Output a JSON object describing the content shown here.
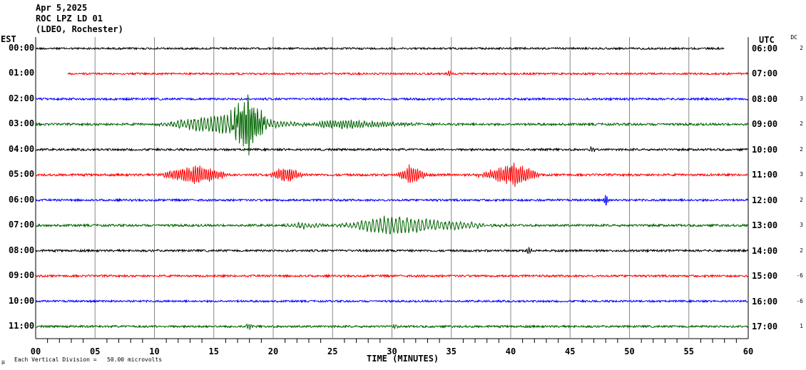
{
  "header": {
    "date": "Apr 5,2025",
    "station": "ROC LPZ LD 01",
    "network": "(LDEO, Rochester)"
  },
  "left_axis_title": "EST",
  "right_axis_title": "UTC",
  "dc_title": "DC",
  "footer": {
    "note_icon": "mu",
    "scale_note": "Each Vertical Division =   50.00 microvolts",
    "xlabel": "TIME (MINUTES)"
  },
  "chart_data": {
    "type": "line",
    "title": "ROC LPZ LD 01 helicorder Apr 5,2025",
    "xlabel": "TIME (MINUTES)",
    "xlim": [
      0,
      60
    ],
    "xticks": [
      "00",
      "05",
      "10",
      "15",
      "20",
      "25",
      "30",
      "35",
      "40",
      "45",
      "50",
      "55",
      "60"
    ],
    "minor_tick_step_minutes": 1,
    "grid": true,
    "vertical_division_microvolts": 50.0,
    "traces": [
      {
        "est": "00:00",
        "utc": "06:00",
        "dc": "2",
        "color": "#000000",
        "start": 0,
        "end": 58,
        "noise": 1.0,
        "events": []
      },
      {
        "est": "01:00",
        "utc": "07:00",
        "dc": "",
        "color": "#ff0000",
        "start": 2.7,
        "end": 60,
        "noise": 1.0,
        "events": [
          {
            "start": 34.5,
            "peak": 34.8,
            "end": 35.3,
            "amp": 2.5,
            "period": 0.2
          }
        ]
      },
      {
        "est": "02:00",
        "utc": "08:00",
        "dc": "3",
        "color": "#0000ff",
        "start": 0,
        "end": 60,
        "noise": 1.1,
        "events": []
      },
      {
        "est": "03:00",
        "utc": "09:00",
        "dc": "2",
        "color": "#006400",
        "start": 0,
        "end": 60,
        "noise": 1.2,
        "events": [
          {
            "start": 9.5,
            "peak": 15.5,
            "end": 24,
            "amp": 6,
            "period": 0.28
          },
          {
            "start": 15.8,
            "peak": 17.8,
            "end": 20,
            "amp": 18,
            "period": 0.16
          },
          {
            "start": 22,
            "peak": 25,
            "end": 36,
            "amp": 2.5,
            "period": 0.22
          }
        ]
      },
      {
        "est": "04:00",
        "utc": "10:00",
        "dc": "2",
        "color": "#000000",
        "start": 0,
        "end": 60,
        "noise": 1.1,
        "events": [
          {
            "start": 46.5,
            "peak": 46.8,
            "end": 47.3,
            "amp": 2.5,
            "period": 0.2
          }
        ]
      },
      {
        "est": "05:00",
        "utc": "11:00",
        "dc": "3",
        "color": "#ff0000",
        "start": 0,
        "end": 60,
        "noise": 1.2,
        "events": [
          {
            "start": 9.8,
            "peak": 13.5,
            "end": 17,
            "amp": 6,
            "period": 0.18
          },
          {
            "start": 19.3,
            "peak": 21,
            "end": 23.3,
            "amp": 5,
            "period": 0.18
          },
          {
            "start": 30.3,
            "peak": 31.5,
            "end": 33.5,
            "amp": 6.5,
            "period": 0.18
          },
          {
            "start": 36.5,
            "peak": 40.5,
            "end": 43,
            "amp": 7.5,
            "period": 0.18
          }
        ]
      },
      {
        "est": "06:00",
        "utc": "12:00",
        "dc": "2",
        "color": "#0000ff",
        "start": 0,
        "end": 60,
        "noise": 1.1,
        "events": [
          {
            "start": 47.7,
            "peak": 48,
            "end": 48.4,
            "amp": 4,
            "period": 0.15
          }
        ]
      },
      {
        "est": "07:00",
        "utc": "13:00",
        "dc": "3",
        "color": "#006400",
        "start": 0,
        "end": 60,
        "noise": 1.2,
        "events": [
          {
            "start": 20.5,
            "peak": 22.5,
            "end": 25,
            "amp": 2,
            "period": 0.3
          },
          {
            "start": 24.7,
            "peak": 29.5,
            "end": 41,
            "amp": 5.5,
            "period": 0.32
          }
        ]
      },
      {
        "est": "08:00",
        "utc": "14:00",
        "dc": "2",
        "color": "#000000",
        "start": 0,
        "end": 60,
        "noise": 1.1,
        "events": [
          {
            "start": 41.2,
            "peak": 41.5,
            "end": 42,
            "amp": 2.5,
            "period": 0.2
          }
        ]
      },
      {
        "est": "09:00",
        "utc": "15:00",
        "dc": "-6",
        "color": "#ff0000",
        "start": 0,
        "end": 60,
        "noise": 1.1,
        "events": []
      },
      {
        "est": "10:00",
        "utc": "16:00",
        "dc": "-6",
        "color": "#0000ff",
        "start": 0,
        "end": 60,
        "noise": 1.0,
        "events": []
      },
      {
        "est": "11:00",
        "utc": "17:00",
        "dc": "1",
        "color": "#006400",
        "start": 0,
        "end": 60,
        "noise": 1.1,
        "events": [
          {
            "start": 17.6,
            "peak": 17.9,
            "end": 18.4,
            "amp": 2.5,
            "period": 0.2
          },
          {
            "start": 29.8,
            "peak": 30.1,
            "end": 30.6,
            "amp": 2,
            "period": 0.2
          }
        ]
      }
    ]
  }
}
